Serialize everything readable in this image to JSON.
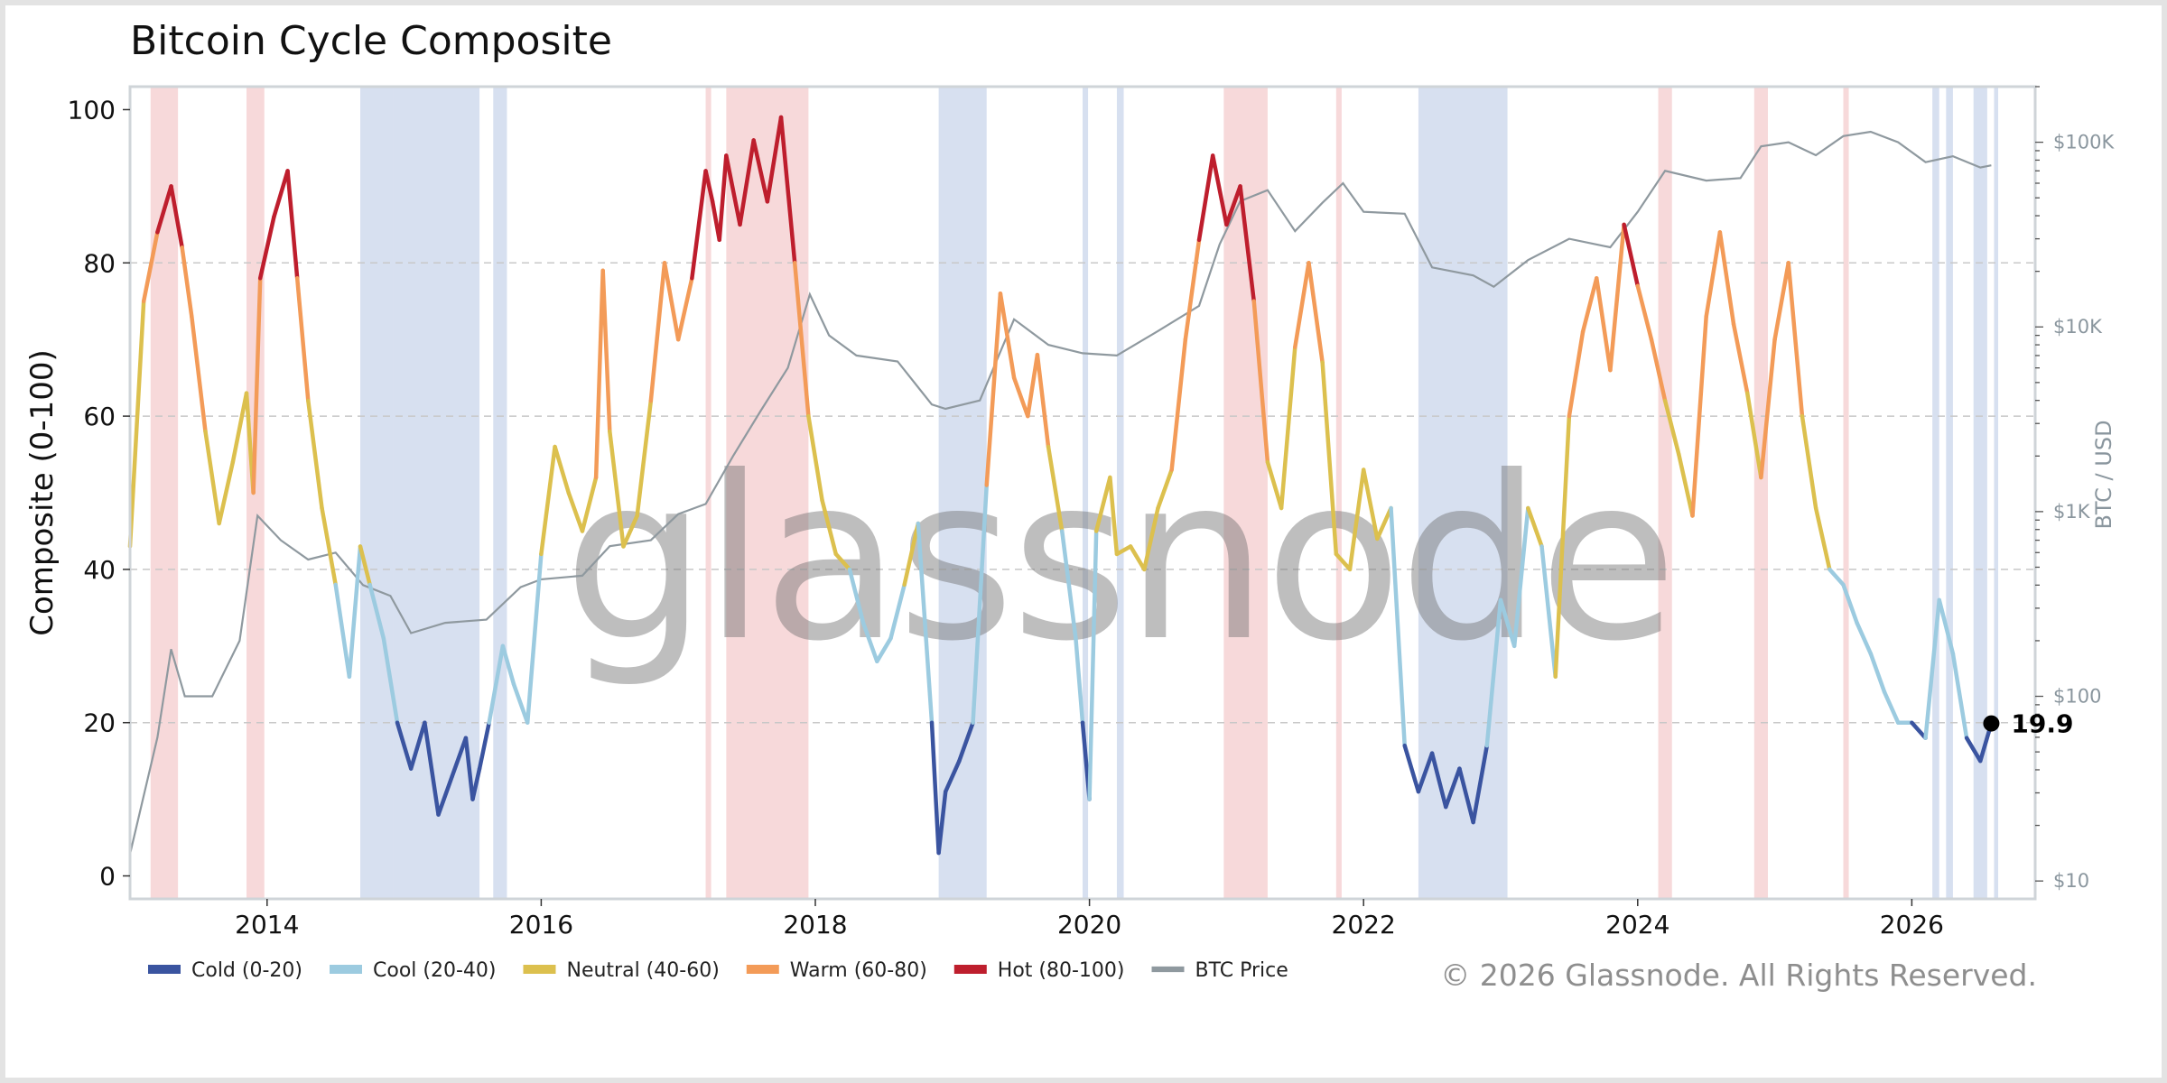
{
  "chart_data": {
    "type": "line",
    "title": "Bitcoin Cycle Composite",
    "ylabel": "Composite (0-100)",
    "y2label": "BTC / USD",
    "ylim": [
      -3,
      103
    ],
    "yticks": [
      0,
      20,
      40,
      60,
      80,
      100
    ],
    "xlim": [
      2013.0,
      2026.9
    ],
    "xticks": [
      2014,
      2016,
      2018,
      2020,
      2022,
      2024,
      2026
    ],
    "y2_scale": "log",
    "y2lim": [
      8,
      200000
    ],
    "y2ticks": [
      {
        "value": 10,
        "label": "$10"
      },
      {
        "value": 100,
        "label": "$100"
      },
      {
        "value": 1000,
        "label": "$1K"
      },
      {
        "value": 10000,
        "label": "$10K"
      },
      {
        "value": 100000,
        "label": "$100K"
      }
    ],
    "grid": "horizontal dashed",
    "legend_position": "bottom-left",
    "bands": [
      {
        "name": "Cold (0-20)",
        "min": 0,
        "max": 20,
        "color": "#3a54a0"
      },
      {
        "name": "Cool (20-40)",
        "min": 20,
        "max": 40,
        "color": "#9ccbe0"
      },
      {
        "name": "Neutral (40-60)",
        "min": 40,
        "max": 60,
        "color": "#dcc04e"
      },
      {
        "name": "Warm (60-80)",
        "min": 60,
        "max": 80,
        "color": "#f39b58"
      },
      {
        "name": "Hot (80-100)",
        "min": 80,
        "max": 100,
        "color": "#be1e2d"
      }
    ],
    "price_series_name": "BTC Price",
    "price_color": "#8f999f",
    "composite": {
      "x": [
        2013.0,
        2013.1,
        2013.2,
        2013.3,
        2013.38,
        2013.45,
        2013.55,
        2013.65,
        2013.75,
        2013.85,
        2013.9,
        2013.95,
        2014.05,
        2014.15,
        2014.22,
        2014.3,
        2014.4,
        2014.5,
        2014.6,
        2014.68,
        2014.75,
        2014.85,
        2014.95,
        2015.05,
        2015.15,
        2015.25,
        2015.35,
        2015.45,
        2015.5,
        2015.55,
        2015.62,
        2015.72,
        2015.8,
        2015.9,
        2016.0,
        2016.1,
        2016.2,
        2016.3,
        2016.4,
        2016.45,
        2016.5,
        2016.6,
        2016.7,
        2016.8,
        2016.9,
        2017.0,
        2017.1,
        2017.2,
        2017.25,
        2017.3,
        2017.35,
        2017.45,
        2017.55,
        2017.65,
        2017.75,
        2017.85,
        2017.95,
        2018.05,
        2018.15,
        2018.25,
        2018.35,
        2018.45,
        2018.55,
        2018.65,
        2018.75,
        2018.85,
        2018.9,
        2018.95,
        2019.05,
        2019.15,
        2019.25,
        2019.35,
        2019.45,
        2019.55,
        2019.62,
        2019.7,
        2019.8,
        2019.9,
        2019.95,
        2020.0,
        2020.05,
        2020.15,
        2020.2,
        2020.3,
        2020.4,
        2020.5,
        2020.6,
        2020.7,
        2020.8,
        2020.9,
        2021.0,
        2021.1,
        2021.2,
        2021.3,
        2021.4,
        2021.5,
        2021.6,
        2021.7,
        2021.8,
        2021.9,
        2022.0,
        2022.1,
        2022.2,
        2022.3,
        2022.4,
        2022.5,
        2022.6,
        2022.7,
        2022.8,
        2022.9,
        2023.0,
        2023.1,
        2023.2,
        2023.3,
        2023.4,
        2023.5,
        2023.6,
        2023.7,
        2023.8,
        2023.9,
        2024.0,
        2024.1,
        2024.2,
        2024.3,
        2024.4,
        2024.5,
        2024.6,
        2024.7,
        2024.8,
        2024.9,
        2025.0,
        2025.1,
        2025.2,
        2025.3,
        2025.4,
        2025.5,
        2025.6,
        2025.7,
        2025.8,
        2025.9,
        2026.0,
        2026.1,
        2026.2,
        2026.3,
        2026.4,
        2026.5,
        2026.58
      ],
      "y": [
        43,
        75,
        84,
        90,
        82,
        73,
        58,
        46,
        54,
        63,
        50,
        78,
        86,
        92,
        78,
        62,
        48,
        38,
        26,
        43,
        38,
        31,
        20,
        14,
        20,
        8,
        13,
        18,
        10,
        14,
        20,
        30,
        25,
        20,
        42,
        56,
        50,
        45,
        52,
        79,
        58,
        43,
        47,
        62,
        80,
        70,
        78,
        92,
        88,
        83,
        94,
        85,
        96,
        88,
        99,
        80,
        60,
        49,
        42,
        40,
        33,
        28,
        31,
        38,
        46,
        20,
        3,
        11,
        15,
        20,
        51,
        76,
        65,
        60,
        68,
        56,
        45,
        31,
        20,
        10,
        45,
        52,
        42,
        43,
        40,
        48,
        53,
        70,
        83,
        94,
        85,
        90,
        75,
        54,
        48,
        69,
        80,
        67,
        42,
        40,
        53,
        44,
        48,
        17,
        11,
        16,
        9,
        14,
        7,
        17,
        36,
        30,
        48,
        43,
        26,
        60,
        71,
        78,
        66,
        85,
        77,
        70,
        62,
        55,
        47,
        73,
        84,
        72,
        63,
        52,
        70,
        80,
        60,
        48,
        40,
        38,
        33,
        29,
        24,
        20,
        20,
        18,
        36,
        29,
        18,
        15,
        19.9
      ]
    },
    "btc_price": {
      "x": [
        2013.0,
        2013.2,
        2013.3,
        2013.4,
        2013.6,
        2013.8,
        2013.93,
        2014.1,
        2014.3,
        2014.5,
        2014.7,
        2014.9,
        2015.05,
        2015.3,
        2015.6,
        2015.85,
        2016.0,
        2016.3,
        2016.5,
        2016.8,
        2017.0,
        2017.2,
        2017.4,
        2017.6,
        2017.8,
        2017.96,
        2018.1,
        2018.3,
        2018.6,
        2018.85,
        2018.95,
        2019.2,
        2019.45,
        2019.7,
        2019.95,
        2020.2,
        2020.5,
        2020.8,
        2020.95,
        2021.1,
        2021.3,
        2021.5,
        2021.7,
        2021.85,
        2022.0,
        2022.3,
        2022.5,
        2022.8,
        2022.95,
        2023.2,
        2023.5,
        2023.8,
        2024.0,
        2024.2,
        2024.5,
        2024.75,
        2024.9,
        2025.1,
        2025.3,
        2025.5,
        2025.7,
        2025.9,
        2026.1,
        2026.3,
        2026.5,
        2026.58
      ],
      "y": [
        14,
        60,
        180,
        100,
        100,
        200,
        950,
        700,
        550,
        600,
        400,
        350,
        220,
        250,
        260,
        390,
        430,
        450,
        650,
        700,
        970,
        1100,
        2000,
        3500,
        6000,
        15000,
        9000,
        7000,
        6500,
        3800,
        3600,
        4000,
        11000,
        8000,
        7200,
        7000,
        9500,
        13000,
        28000,
        48000,
        55000,
        33000,
        47000,
        60000,
        42000,
        41000,
        21000,
        19000,
        16500,
        23000,
        30000,
        27000,
        42000,
        70000,
        62000,
        64000,
        95000,
        100000,
        85000,
        108000,
        114000,
        100000,
        78000,
        84000,
        73000,
        75000
      ]
    },
    "regimes": [
      {
        "start": 2013.15,
        "end": 2013.35,
        "type": "hot"
      },
      {
        "start": 2013.85,
        "end": 2013.98,
        "type": "hot"
      },
      {
        "start": 2014.68,
        "end": 2014.92,
        "type": "cold"
      },
      {
        "start": 2014.92,
        "end": 2015.55,
        "type": "cold"
      },
      {
        "start": 2015.65,
        "end": 2015.75,
        "type": "cold"
      },
      {
        "start": 2017.2,
        "end": 2017.24,
        "type": "hot"
      },
      {
        "start": 2017.35,
        "end": 2017.95,
        "type": "hot"
      },
      {
        "start": 2018.9,
        "end": 2019.25,
        "type": "cold"
      },
      {
        "start": 2019.95,
        "end": 2019.99,
        "type": "cold"
      },
      {
        "start": 2020.2,
        "end": 2020.25,
        "type": "cold"
      },
      {
        "start": 2020.98,
        "end": 2021.3,
        "type": "hot"
      },
      {
        "start": 2021.8,
        "end": 2021.84,
        "type": "hot"
      },
      {
        "start": 2022.4,
        "end": 2023.05,
        "type": "cold"
      },
      {
        "start": 2024.15,
        "end": 2024.25,
        "type": "hot"
      },
      {
        "start": 2024.85,
        "end": 2024.95,
        "type": "hot"
      },
      {
        "start": 2025.5,
        "end": 2025.54,
        "type": "hot"
      },
      {
        "start": 2026.15,
        "end": 2026.2,
        "type": "cold"
      },
      {
        "start": 2026.25,
        "end": 2026.3,
        "type": "cold"
      },
      {
        "start": 2026.45,
        "end": 2026.55,
        "type": "cold"
      },
      {
        "start": 2026.6,
        "end": 2026.63,
        "type": "cold"
      }
    ],
    "last_value": {
      "x": 2026.58,
      "y": 19.9,
      "label": "19.9"
    }
  },
  "watermark": "glassnode",
  "copyright": "© 2026 Glassnode. All Rights Reserved.",
  "colors": {
    "hot_regime": "#f7d9da",
    "cold_regime": "#d7e0f0",
    "grid": "#c8c8c8",
    "axis": "#cfd4d8",
    "marker": "#000000"
  }
}
